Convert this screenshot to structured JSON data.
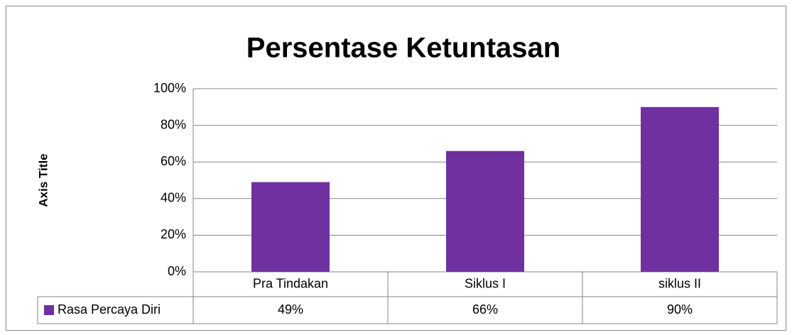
{
  "chart_data": {
    "type": "bar",
    "title": "Persentase Ketuntasan",
    "y_axis_label": "Axis Title",
    "categories": [
      "Pra Tindakan",
      "Siklus I",
      "siklus II"
    ],
    "series": [
      {
        "name": "Rasa Percaya Diri",
        "color": "#7030a0",
        "values": [
          49,
          66,
          90
        ],
        "value_labels": [
          "49%",
          "66%",
          "90%"
        ]
      }
    ],
    "ylim": [
      0,
      100
    ],
    "yticks": [
      {
        "value": 0,
        "label": "0%"
      },
      {
        "value": 20,
        "label": "20%"
      },
      {
        "value": 40,
        "label": "40%"
      },
      {
        "value": 60,
        "label": "60%"
      },
      {
        "value": 80,
        "label": "80%"
      },
      {
        "value": 100,
        "label": "100%"
      }
    ],
    "grid": true
  }
}
